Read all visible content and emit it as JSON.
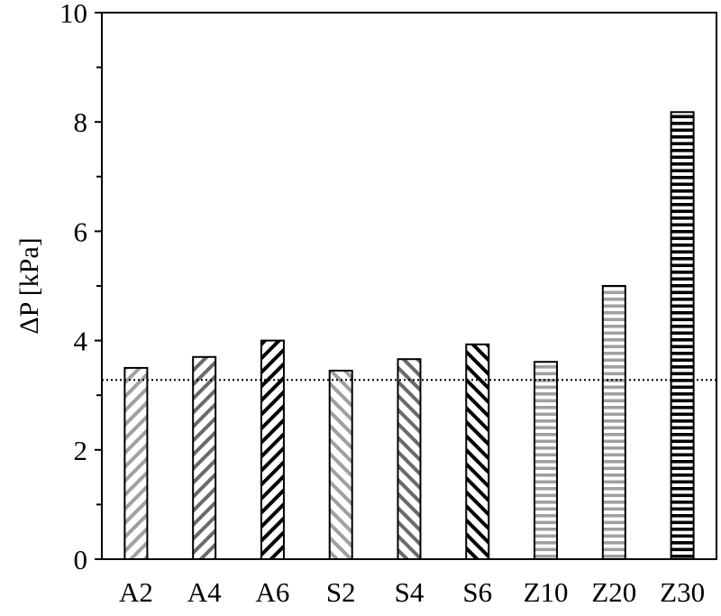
{
  "chart_data": {
    "type": "bar",
    "title": "",
    "xlabel": "",
    "ylabel": "ΔP [kPa]",
    "ylim": [
      0,
      10
    ],
    "yticks": [
      0,
      2,
      4,
      6,
      8,
      10
    ],
    "ytick_labels": [
      "0",
      "2",
      "4",
      "6",
      "8",
      "10"
    ],
    "minor_yticks": [
      1,
      3,
      5,
      7,
      9
    ],
    "grid": false,
    "legend": null,
    "categories": [
      "A2",
      "A4",
      "A6",
      "S2",
      "S4",
      "S6",
      "Z10",
      "Z20",
      "Z30"
    ],
    "values": [
      3.5,
      3.7,
      4.0,
      3.45,
      3.66,
      3.93,
      3.61,
      5.0,
      8.18
    ],
    "patterns": [
      "diag-up-light",
      "diag-up-mid",
      "diag-up-dark",
      "diag-down-light",
      "diag-down-mid",
      "diag-down-dark",
      "horiz-light",
      "horiz-light",
      "horiz-dark"
    ],
    "reference_line": {
      "value": 3.28,
      "style": "dotted",
      "color": "#000000"
    }
  },
  "colors": {
    "light": "#a0a0a0",
    "mid": "#6a6a6a",
    "dark": "#000000",
    "axis": "#000000"
  }
}
